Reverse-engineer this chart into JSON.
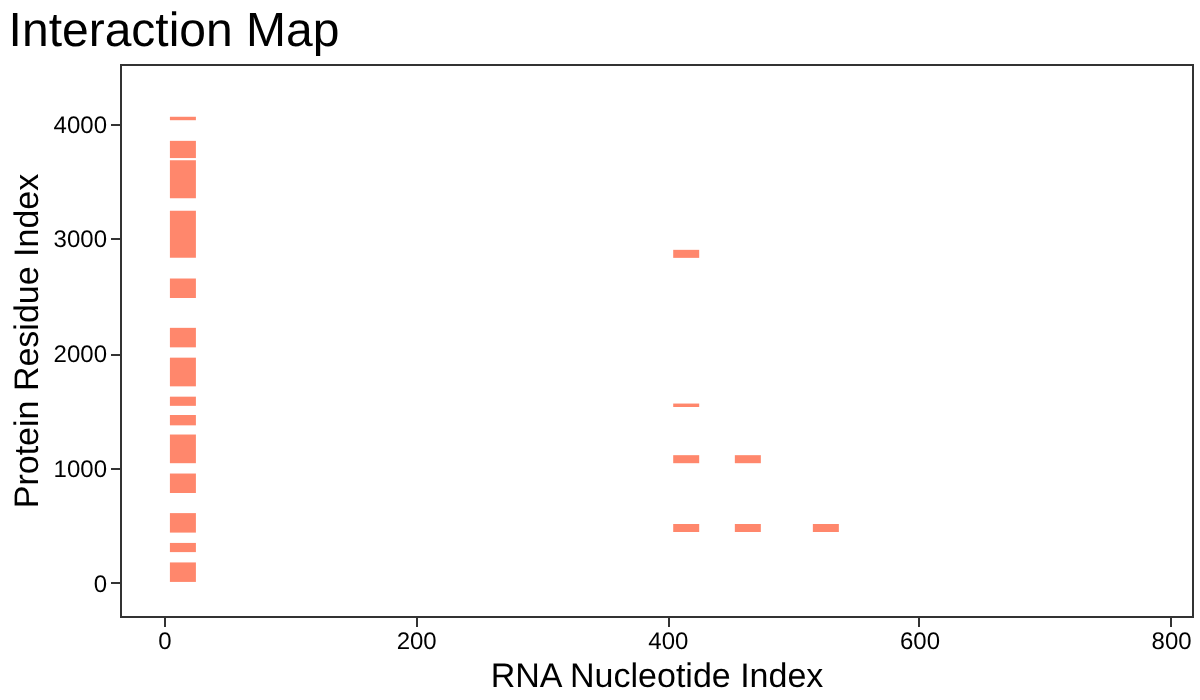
{
  "chart_data": {
    "type": "bar",
    "title": "Interaction Map",
    "xlabel": "RNA Nucleotide Index",
    "ylabel": "Protein Residue Index",
    "series": [
      {
        "color": "#ff7a5c",
        "x": [
          15,
          415,
          464,
          526
        ],
        "base": [
          5,
          440,
          440,
          440
        ],
        "values": [
          170,
          70,
          70,
          70
        ]
      },
      {
        "color": "#ff7a5c",
        "x": [
          15,
          415,
          464
        ],
        "base": [
          265,
          1040,
          1040
        ],
        "values": [
          80,
          70,
          70
        ]
      },
      {
        "color": "#ff7a5c",
        "x": [
          15,
          415
        ],
        "base": [
          435,
          1530
        ],
        "values": [
          170,
          30
        ]
      },
      {
        "color": "#ff7a5c",
        "x": [
          15,
          415
        ],
        "base": [
          780,
          2830
        ],
        "values": [
          170,
          70
        ]
      },
      {
        "color": "#ff7a5c",
        "x": [
          15
        ],
        "base": [
          1040
        ],
        "values": [
          250
        ]
      },
      {
        "color": "#ff7a5c",
        "x": [
          15
        ],
        "base": [
          1370
        ],
        "values": [
          90
        ]
      },
      {
        "color": "#ff7a5c",
        "x": [
          15
        ],
        "base": [
          1540
        ],
        "values": [
          80
        ]
      },
      {
        "color": "#ff7a5c",
        "x": [
          15
        ],
        "base": [
          1710
        ],
        "values": [
          250
        ]
      },
      {
        "color": "#ff7a5c",
        "x": [
          15
        ],
        "base": [
          2050
        ],
        "values": [
          170
        ]
      },
      {
        "color": "#ff7a5c",
        "x": [
          15
        ],
        "base": [
          2480
        ],
        "values": [
          170
        ]
      },
      {
        "color": "#ff7a5c",
        "x": [
          15
        ],
        "base": [
          2830
        ],
        "values": [
          410
        ]
      },
      {
        "color": "#ff7a5c",
        "x": [
          15
        ],
        "base": [
          3350
        ],
        "values": [
          330
        ]
      },
      {
        "color": "#ff7a5c",
        "x": [
          15
        ],
        "base": [
          3700
        ],
        "values": [
          150
        ]
      },
      {
        "color": "#ff7a5c",
        "x": [
          15
        ],
        "base": [
          4030
        ],
        "values": [
          30
        ]
      }
    ],
    "xlim": [
      -35,
      817
    ],
    "xticks": [
      0,
      200,
      400,
      600,
      800
    ],
    "ylim": [
      -292,
      4520
    ],
    "yticks": [
      0,
      1000,
      2000,
      3000,
      4000
    ],
    "grid": false
  }
}
